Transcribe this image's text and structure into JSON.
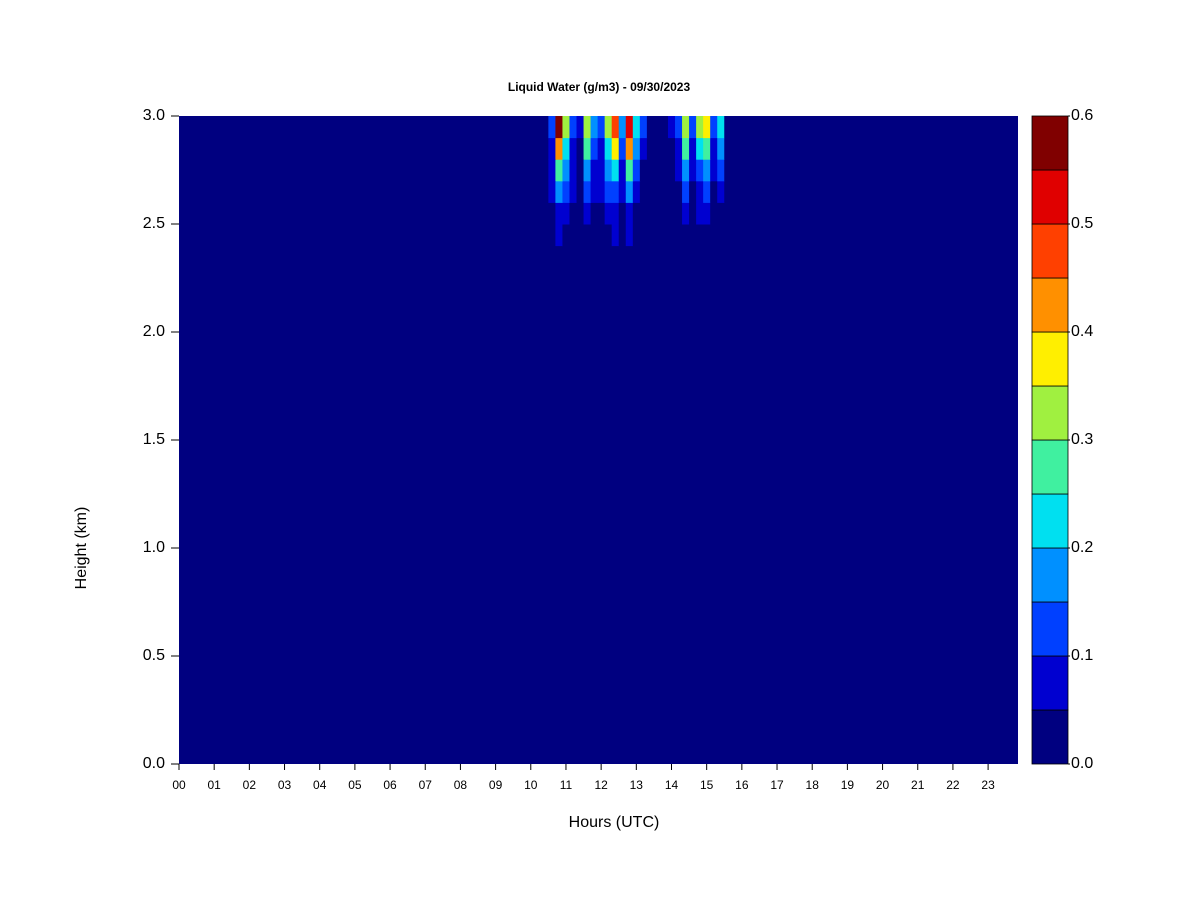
{
  "chart_data": {
    "type": "contour",
    "title": "Liquid Water (g/m3) - 09/30/2023",
    "x_label": "Hours (UTC)",
    "y_label": "Height (km)",
    "xlim": [
      0,
      23.85
    ],
    "ylim": [
      0,
      3
    ],
    "xticks": [
      {
        "value": 0,
        "label": "00"
      },
      {
        "value": 1,
        "label": "01"
      },
      {
        "value": 2,
        "label": "02"
      },
      {
        "value": 3,
        "label": "03"
      },
      {
        "value": 4,
        "label": "04"
      },
      {
        "value": 5,
        "label": "05"
      },
      {
        "value": 6,
        "label": "06"
      },
      {
        "value": 7,
        "label": "07"
      },
      {
        "value": 8,
        "label": "08"
      },
      {
        "value": 9,
        "label": "09"
      },
      {
        "value": 10,
        "label": "10"
      },
      {
        "value": 11,
        "label": "11"
      },
      {
        "value": 12,
        "label": "12"
      },
      {
        "value": 13,
        "label": "13"
      },
      {
        "value": 14,
        "label": "14"
      },
      {
        "value": 15,
        "label": "15"
      },
      {
        "value": 16,
        "label": "16"
      },
      {
        "value": 17,
        "label": "17"
      },
      {
        "value": 18,
        "label": "18"
      },
      {
        "value": 19,
        "label": "19"
      },
      {
        "value": 20,
        "label": "20"
      },
      {
        "value": 21,
        "label": "21"
      },
      {
        "value": 22,
        "label": "22"
      },
      {
        "value": 23,
        "label": "23"
      }
    ],
    "yticks": [
      {
        "value": 0,
        "label": "0.0"
      },
      0.5,
      {
        "value": 1,
        "label": "1.0"
      },
      1.5,
      {
        "value": 2,
        "label": "2.0"
      },
      2.5,
      {
        "value": 3,
        "label": "3.0"
      }
    ],
    "levels": [
      0,
      0.05,
      0.1,
      0.15,
      0.2,
      0.25,
      0.3,
      0.35,
      0.4,
      0.45,
      0.5,
      0.55,
      0.6
    ],
    "colors": [
      "#000080",
      "#0000d0",
      "#0040ff",
      "#0090ff",
      "#00e0f0",
      "#40f0a0",
      "#a0f040",
      "#ffef00",
      "#ff9000",
      "#ff4000",
      "#e00000",
      "#800000"
    ],
    "colorbar_ticks": [
      {
        "value": 0,
        "label": "0.0"
      },
      0.1,
      0.2,
      0.3,
      0.4,
      0.5,
      0.6
    ],
    "x": [
      10.6,
      10.8,
      11.0,
      11.2,
      11.4,
      11.6,
      11.8,
      12.0,
      12.2,
      12.4,
      12.6,
      12.8,
      13.0,
      13.2,
      13.4,
      13.6,
      13.8,
      14.0,
      14.2,
      14.4,
      14.6,
      14.8,
      15.0,
      15.2,
      15.4,
      15.6
    ],
    "y": [
      2.45,
      2.55,
      2.65,
      2.75,
      2.85,
      2.95
    ],
    "z": [
      [
        0,
        0.05,
        0,
        0,
        0,
        0,
        0,
        0,
        0,
        0.05,
        0,
        0.06,
        0,
        0,
        0,
        0,
        0,
        0,
        0,
        0,
        0,
        0,
        0,
        0,
        0,
        0
      ],
      [
        0.04,
        0.08,
        0.06,
        0,
        0,
        0.06,
        0,
        0,
        0.06,
        0.08,
        0,
        0.08,
        0,
        0,
        0,
        0,
        0,
        0,
        0,
        0.06,
        0,
        0.05,
        0.06,
        0,
        0,
        0
      ],
      [
        0.05,
        0.15,
        0.1,
        0.05,
        0,
        0.1,
        0.06,
        0.05,
        0.1,
        0.12,
        0.06,
        0.15,
        0.06,
        0,
        0,
        0,
        0,
        0,
        0,
        0.1,
        0,
        0.08,
        0.1,
        0,
        0.06,
        0
      ],
      [
        0.06,
        0.25,
        0.15,
        0.06,
        0,
        0.15,
        0.08,
        0.06,
        0.15,
        0.2,
        0.08,
        0.25,
        0.1,
        0,
        0,
        0,
        0,
        0,
        0.06,
        0.15,
        0.06,
        0.12,
        0.15,
        0.06,
        0.1,
        0
      ],
      [
        0.08,
        0.4,
        0.2,
        0.08,
        0.03,
        0.25,
        0.1,
        0.08,
        0.2,
        0.35,
        0.1,
        0.4,
        0.15,
        0.05,
        0,
        0,
        0,
        0.03,
        0.08,
        0.25,
        0.08,
        0.2,
        0.25,
        0.08,
        0.15,
        0
      ],
      [
        0.1,
        0.55,
        0.3,
        0.1,
        0.05,
        0.3,
        0.15,
        0.1,
        0.3,
        0.45,
        0.15,
        0.5,
        0.2,
        0.1,
        0,
        0,
        0,
        0.05,
        0.1,
        0.3,
        0.1,
        0.3,
        0.35,
        0.1,
        0.2,
        0
      ]
    ]
  }
}
